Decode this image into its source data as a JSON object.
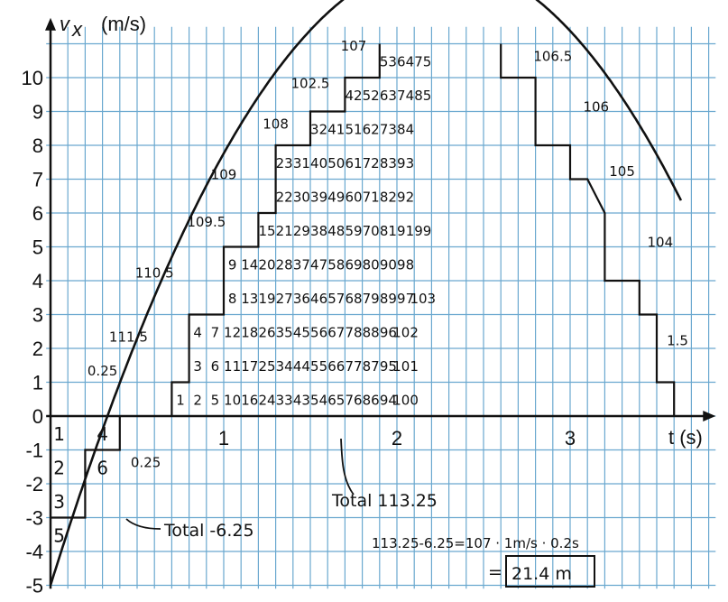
{
  "chart_data": {
    "type": "line",
    "title": "",
    "ylabel_symbol": "v",
    "ylabel_subscript": "x",
    "ylabel_unit": "(m/s)",
    "xlabel": "t (s)",
    "xlim": [
      -0.025,
      3.84
    ],
    "ylim": [
      -5.1,
      11.5
    ],
    "x_ticks": [
      1,
      2,
      3
    ],
    "y_ticks": [
      10,
      9,
      8,
      7,
      6,
      5,
      4,
      3,
      2,
      1,
      0,
      -1,
      -2,
      -3,
      -4,
      -5
    ],
    "series": [
      {
        "function": "v = 16.41*t - 3.65*t^2 - 5 (fitted to drawn curve)",
        "x": [
          0,
          0.2,
          0.4,
          0.6,
          0.8,
          1.0,
          1.2,
          1.4,
          1.6,
          1.8,
          2.0,
          2.2,
          2.4,
          2.6,
          2.8,
          3.0,
          3.2,
          3.4,
          3.6
        ],
        "y": [
          -5.0,
          -1.86,
          1.98,
          3.53,
          5.78,
          7.76,
          9.44,
          10.05,
          10.79,
          11.28,
          11.23,
          11.43,
          11.35,
          11.12,
          10.66,
          9.92,
          8.05,
          3.71,
          -0.01
        ]
      }
    ],
    "grid": true,
    "grid_step_x": 0.1,
    "grid_step_y": 1,
    "positive_square_counts": [
      [
        "1",
        "2",
        "5",
        "10",
        "16",
        "24",
        "33",
        "43",
        "54",
        "65",
        "76",
        "86",
        "94",
        "100"
      ],
      [
        "3",
        "6",
        "11",
        "17",
        "25",
        "34",
        "44",
        "55",
        "66",
        "77",
        "87",
        "95",
        "101"
      ],
      [
        "4",
        "7",
        "12",
        "18",
        "26",
        "35",
        "45",
        "56",
        "67",
        "78",
        "88",
        "96",
        "102"
      ],
      [
        "8",
        "13",
        "19",
        "27",
        "36",
        "46",
        "57",
        "68",
        "79",
        "89",
        "97",
        "103"
      ],
      [
        "9",
        "14",
        "20",
        "28",
        "37",
        "47",
        "58",
        "69",
        "80",
        "90",
        "98"
      ],
      [
        "15",
        "21",
        "29",
        "38",
        "48",
        "59",
        "70",
        "81",
        "91",
        "99"
      ],
      [
        "22",
        "30",
        "39",
        "49",
        "60",
        "71",
        "82",
        "92"
      ],
      [
        "23",
        "31",
        "40",
        "50",
        "61",
        "72",
        "83",
        "93"
      ],
      [
        "32",
        "41",
        "51",
        "62",
        "73",
        "84"
      ],
      [
        "42",
        "52",
        "63",
        "74",
        "85"
      ],
      [
        "53",
        "64",
        "75"
      ]
    ],
    "negative_square_counts": [
      "1",
      "4",
      "2",
      "6",
      "3",
      "5"
    ],
    "partial_counts": [
      "0.25",
      "111.5",
      "110.5",
      "109.5",
      "109",
      "108",
      "102.5",
      "107",
      "106.5",
      "106",
      "105",
      "104",
      "1.5",
      "0.25"
    ],
    "annotations": {
      "total_positive": "Total 113.25",
      "total_negative": "Total -6.25",
      "calculation": "113.25-6.25=107 · 1m/s · 0.2s",
      "result_eq": "=",
      "result": "21.4 m"
    }
  }
}
